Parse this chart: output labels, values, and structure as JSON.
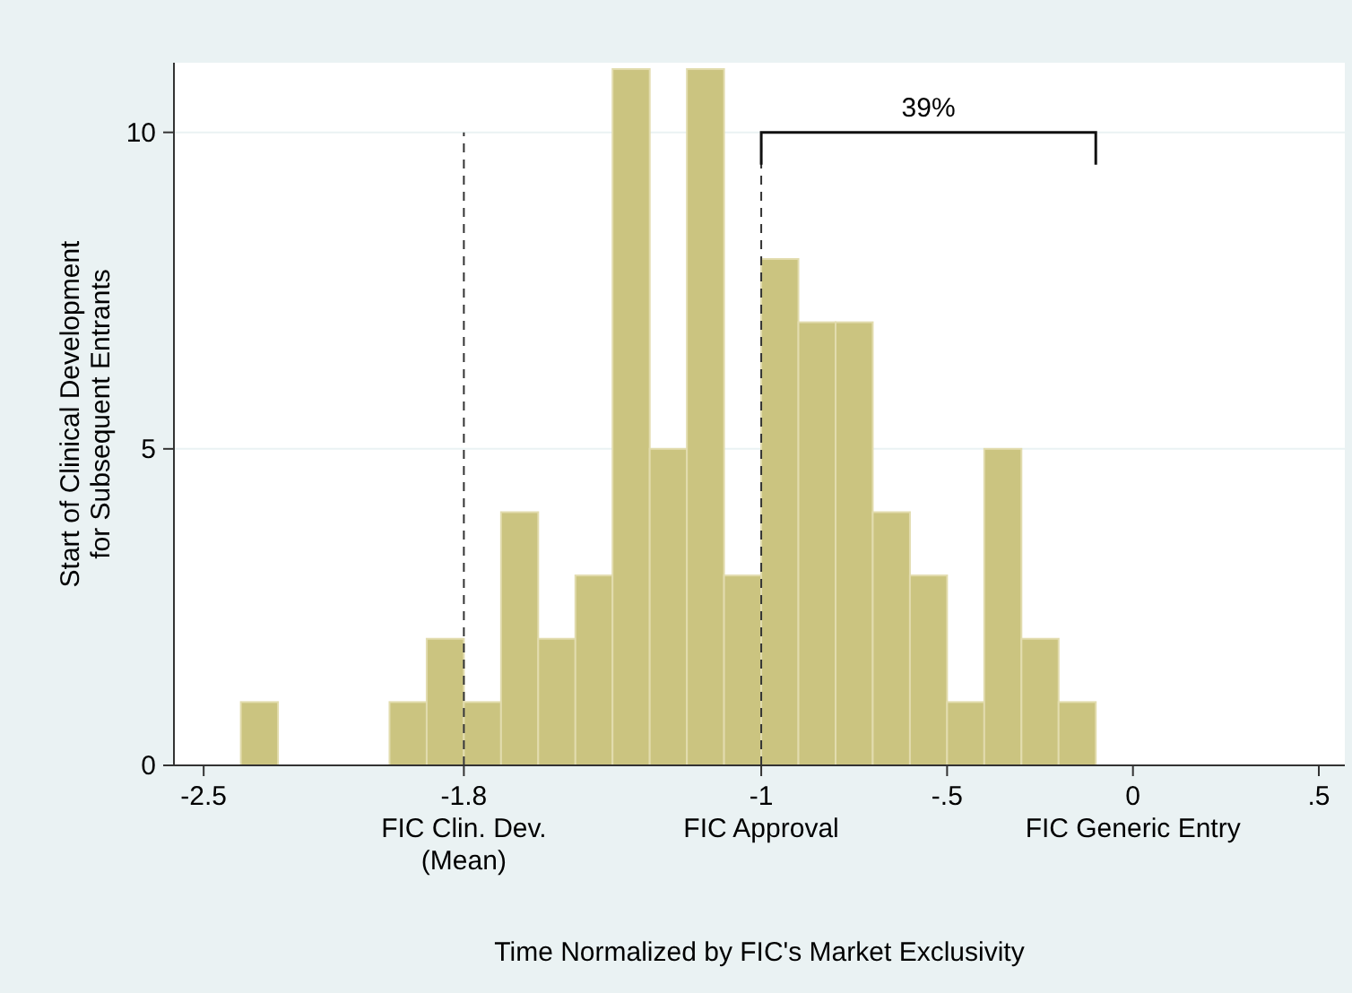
{
  "chart_data": {
    "type": "histogram",
    "xlabel": "Time Normalized by FIC's Market Exclusivity",
    "ylabel": "Start of Clinical Development\nfor Subsequent Entrants",
    "bins": [
      -2.4,
      -2.3,
      -2.2,
      -2.1,
      -2.0,
      -1.9,
      -1.8,
      -1.7,
      -1.6,
      -1.5,
      -1.4,
      -1.3,
      -1.2,
      -1.1,
      -1.0,
      -0.9,
      -0.8,
      -0.7,
      -0.6,
      -0.5,
      -0.4,
      -0.3,
      -0.2,
      -0.1
    ],
    "values": [
      1,
      0,
      0,
      0,
      1,
      2,
      1,
      4,
      2,
      3,
      11,
      5,
      11,
      3,
      8,
      7,
      7,
      4,
      3,
      1,
      5,
      2,
      1
    ],
    "color": "#cbc480",
    "xlim": [
      -2.58,
      0.57
    ],
    "ylim": [
      0,
      11.1
    ],
    "xticks": [
      -2.5,
      {
        "value": -1.8,
        "label": "-1.8\nFIC Clin. Dev.\n(Mean)"
      },
      {
        "value": -1,
        "label": "-1\nFIC Approval"
      },
      {
        "value": -0.5,
        "label": "-.5"
      },
      {
        "value": 0,
        "label": "0\nFIC Generic Entry"
      },
      {
        "value": 0.5,
        "label": ".5"
      }
    ],
    "yticks": [
      0,
      5,
      10
    ],
    "grid": "y",
    "ref_lines": [
      {
        "axis": "x",
        "value": -1.8,
        "line_style": "dashed",
        "color": "#333333"
      },
      {
        "axis": "x",
        "value": -1,
        "line_style": "dashed",
        "color": "#333333"
      }
    ],
    "annotations": [
      "39%"
    ]
  }
}
